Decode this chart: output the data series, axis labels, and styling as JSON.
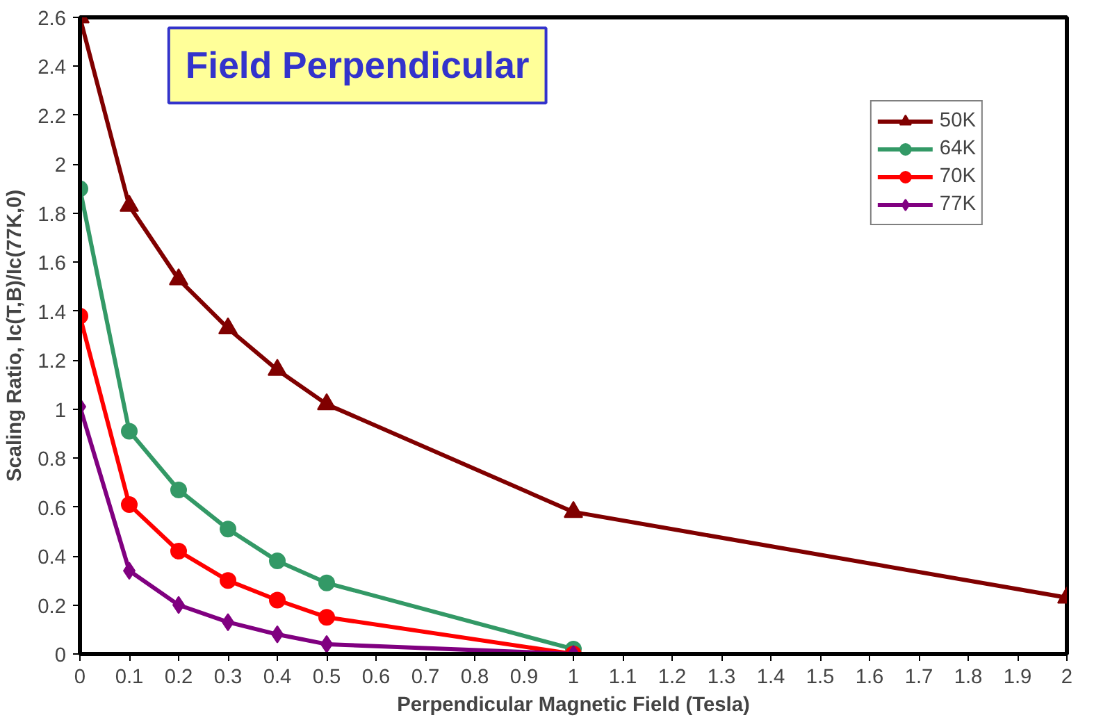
{
  "chart_data": {
    "type": "line",
    "title": "Field Perpendicular",
    "xlabel": "Perpendicular Magnetic Field (Tesla)",
    "ylabel": "Scaling Ratio, Ic(T,B)/Ic(77K,0)",
    "x": [
      0,
      0.1,
      0.2,
      0.3,
      0.4,
      0.5,
      1
    ],
    "series": [
      {
        "name": "50K",
        "color": "#800000",
        "marker": "triangle",
        "x": [
          0,
          0.1,
          0.2,
          0.3,
          0.4,
          0.5,
          1,
          2
        ],
        "values": [
          2.6,
          1.83,
          1.53,
          1.33,
          1.16,
          1.02,
          0.58,
          0.23
        ]
      },
      {
        "name": "64K",
        "color": "#339966",
        "marker": "circle",
        "values": [
          1.9,
          0.91,
          0.67,
          0.51,
          0.38,
          0.29,
          0.02
        ]
      },
      {
        "name": "70K",
        "color": "#ff0000",
        "marker": "circle",
        "values": [
          1.38,
          0.61,
          0.42,
          0.3,
          0.22,
          0.15,
          0.0
        ]
      },
      {
        "name": "77K",
        "color": "#800080",
        "marker": "diamond",
        "values": [
          1.01,
          0.34,
          0.2,
          0.13,
          0.08,
          0.04,
          0.0
        ]
      }
    ],
    "xlim": [
      0,
      2
    ],
    "ylim": [
      0,
      2.6
    ],
    "xticks": [
      0,
      0.1,
      0.2,
      0.3,
      0.4,
      0.5,
      0.6,
      0.7,
      0.8,
      0.9,
      1,
      1.1,
      1.2,
      1.3,
      1.4,
      1.5,
      1.6,
      1.7,
      1.8,
      1.9,
      2
    ],
    "yticks": [
      0,
      0.2,
      0.4,
      0.6,
      0.8,
      1,
      1.2,
      1.4,
      1.6,
      1.8,
      2,
      2.2,
      2.4,
      2.6
    ],
    "grid": false,
    "legend": "top right",
    "line_style": "solid"
  }
}
